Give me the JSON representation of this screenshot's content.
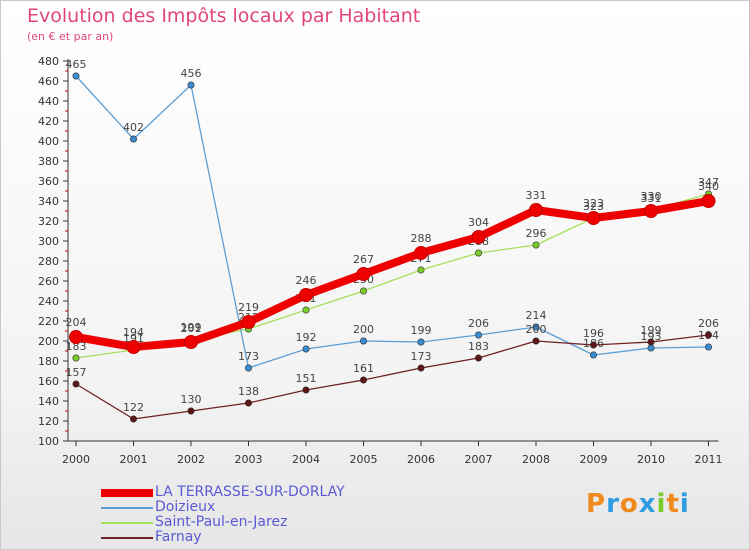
{
  "header": {
    "title": "Evolution des Impôts locaux par Habitant",
    "subtitle": "(en € et par an)"
  },
  "logo": {
    "text": "Proxiti"
  },
  "chart_data": {
    "type": "line",
    "title": "Evolution des Impôts locaux par Habitant",
    "subtitle": "(en € et par an)",
    "xlabel": "",
    "ylabel": "",
    "x": [
      "2000",
      "2001",
      "2002",
      "2003",
      "2004",
      "2005",
      "2006",
      "2007",
      "2008",
      "2009",
      "2010",
      "2011"
    ],
    "ylim": [
      100,
      480
    ],
    "yticks": [
      100,
      120,
      140,
      160,
      180,
      200,
      220,
      240,
      260,
      280,
      300,
      320,
      340,
      360,
      380,
      400,
      420,
      440,
      460,
      480
    ],
    "grid": false,
    "legend_position": "bottom-left",
    "series": [
      {
        "name": "Saint-Paul-en-Jarez",
        "color": "#a6e05a",
        "marker": "#7acc2a",
        "values": [
          183,
          191,
          201,
          212,
          231,
          250,
          271,
          288,
          296,
          323,
          331,
          347
        ],
        "labels": [
          "183",
          "191",
          "201",
          "212",
          "231",
          "250",
          "271",
          "288",
          "296",
          "323",
          "331",
          "347"
        ]
      },
      {
        "name": "Doizieux",
        "color": "#5b9fd6",
        "marker": "#3a8bd0",
        "values": [
          465,
          402,
          456,
          173,
          192,
          200,
          199,
          206,
          214,
          186,
          193,
          194
        ],
        "labels": [
          "465",
          "402",
          "456",
          "173",
          "192",
          "200",
          "199",
          "206",
          "214",
          "186",
          "193",
          "194"
        ]
      },
      {
        "name": "Farnay",
        "color": "#6e2222",
        "marker": "#5e1515",
        "values": [
          157,
          122,
          130,
          138,
          151,
          161,
          173,
          183,
          200,
          196,
          199,
          206
        ],
        "labels": [
          "157",
          "122",
          "130",
          "138",
          "151",
          "161",
          "173",
          "183",
          "200",
          "196",
          "199",
          "206"
        ]
      },
      {
        "name": "LA TERRASSE-SUR-DORLAY",
        "color": "#ee0000",
        "marker": "#ee0000",
        "values": [
          204,
          194,
          199,
          219,
          246,
          267,
          288,
          304,
          331,
          323,
          330,
          340
        ],
        "labels": [
          "204",
          "194",
          "199",
          "219",
          "246",
          "267",
          "288",
          "304",
          "331",
          "323",
          "330",
          "340"
        ]
      }
    ]
  }
}
